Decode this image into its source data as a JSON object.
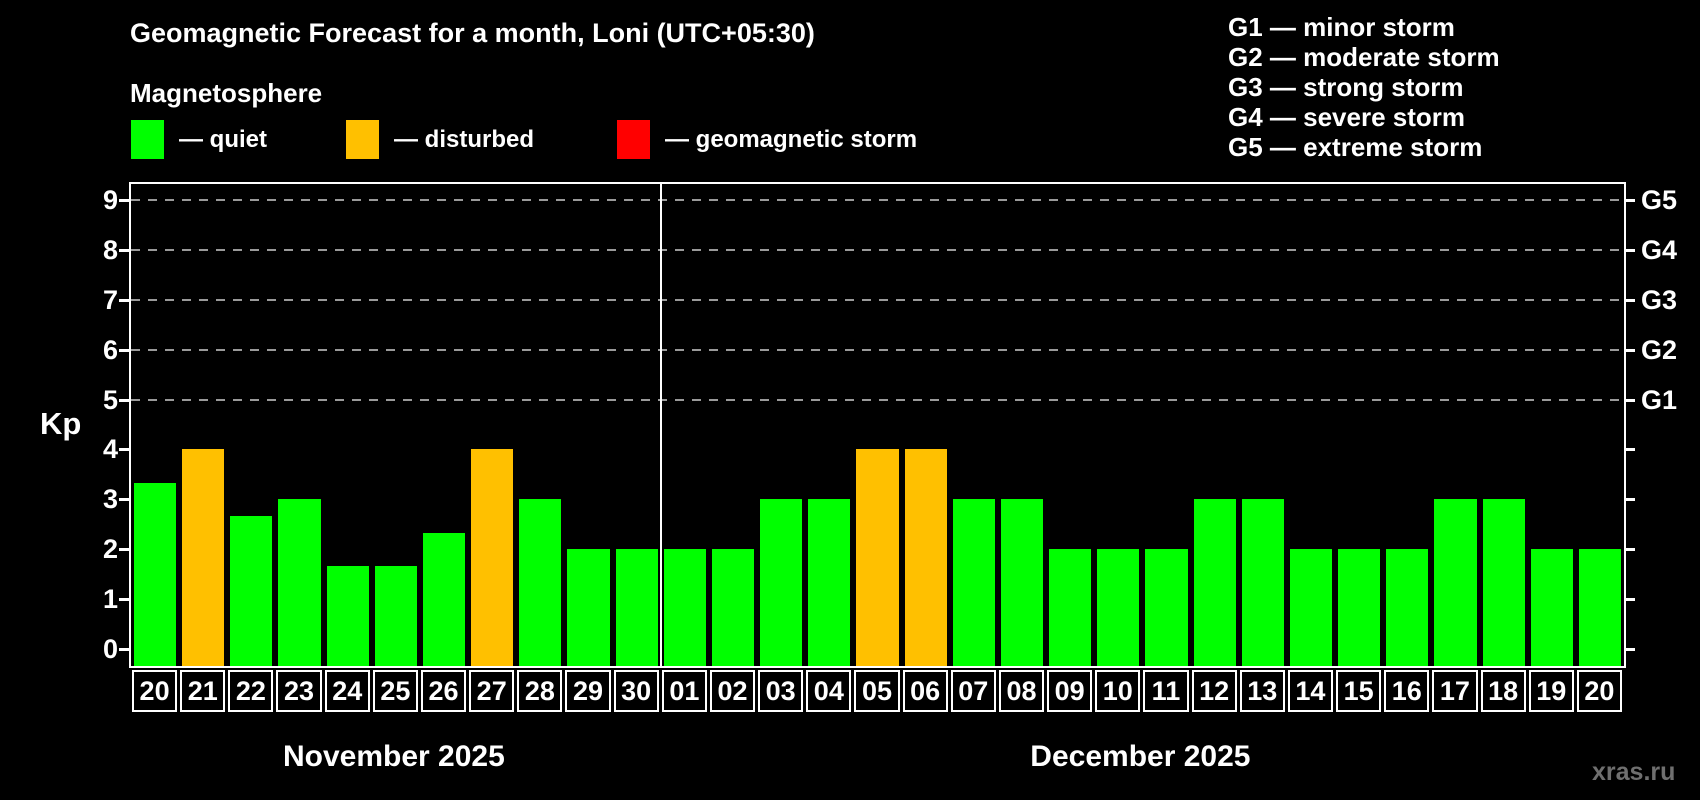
{
  "header": {
    "title": "Geomagnetic Forecast for a month, Loni (UTC+05:30)",
    "subtitle": "Magnetosphere"
  },
  "legend": {
    "items": [
      {
        "label": "— quiet",
        "state": "quiet"
      },
      {
        "label": "— disturbed",
        "state": "disturbed"
      },
      {
        "label": "— geomagnetic storm",
        "state": "storm"
      }
    ]
  },
  "g_scale": {
    "lines": [
      "G1 — minor storm",
      "G2 — moderate storm",
      "G3 — strong storm",
      "G4 — severe storm",
      "G5 — extreme storm"
    ]
  },
  "colors": {
    "quiet": "#00ff00",
    "disturbed": "#ffc000",
    "storm": "#ff0000",
    "grid": "#9a9a9a",
    "axis": "#ffffff",
    "watermark": "#6f6f6f"
  },
  "axis": {
    "kp_label": "Kp",
    "left_ticks": [
      {
        "label": "0",
        "kp": 0
      },
      {
        "label": "1",
        "kp": 1
      },
      {
        "label": "2",
        "kp": 2
      },
      {
        "label": "3",
        "kp": 3
      },
      {
        "label": "4",
        "kp": 4
      },
      {
        "label": "5",
        "kp": 5
      },
      {
        "label": "6",
        "kp": 6
      },
      {
        "label": "7",
        "kp": 7
      },
      {
        "label": "8",
        "kp": 8
      },
      {
        "label": "9",
        "kp": 9
      }
    ],
    "right_ticks_kp": [
      0,
      1,
      2,
      3,
      4,
      5,
      6,
      7,
      8,
      9
    ],
    "right_labels": [
      {
        "label": "G1",
        "kp": 5
      },
      {
        "label": "G2",
        "kp": 6
      },
      {
        "label": "G3",
        "kp": 7
      },
      {
        "label": "G4",
        "kp": 8
      },
      {
        "label": "G5",
        "kp": 9
      }
    ],
    "gridlines_kp": [
      5,
      6,
      7,
      8,
      9
    ]
  },
  "watermark": "xras.ru",
  "chart_data": {
    "type": "bar",
    "title": "Geomagnetic Forecast for a month, Loni (UTC+05:30)",
    "ylabel": "Kp",
    "ylim": [
      0,
      9
    ],
    "grid": "dashed horizontal at Kp 5-9",
    "legend_position": "top",
    "categories": [
      "20",
      "21",
      "22",
      "23",
      "24",
      "25",
      "26",
      "27",
      "28",
      "29",
      "30",
      "01",
      "02",
      "03",
      "04",
      "05",
      "06",
      "07",
      "08",
      "09",
      "10",
      "11",
      "12",
      "13",
      "14",
      "15",
      "16",
      "17",
      "18",
      "19",
      "20"
    ],
    "values": [
      3.33,
      4,
      2.67,
      3,
      1.67,
      1.67,
      2.33,
      4,
      3,
      2,
      2,
      2,
      2,
      3,
      3,
      4,
      4,
      3,
      3,
      2,
      2,
      2,
      3,
      3,
      2,
      2,
      2,
      3,
      3,
      2,
      2
    ],
    "state_thresholds": {
      "disturbed_at_kp": 4,
      "storm_at_kp": 5
    },
    "months": [
      {
        "label": "November 2025",
        "days": 11
      },
      {
        "label": "December 2025",
        "days": 20
      }
    ]
  }
}
